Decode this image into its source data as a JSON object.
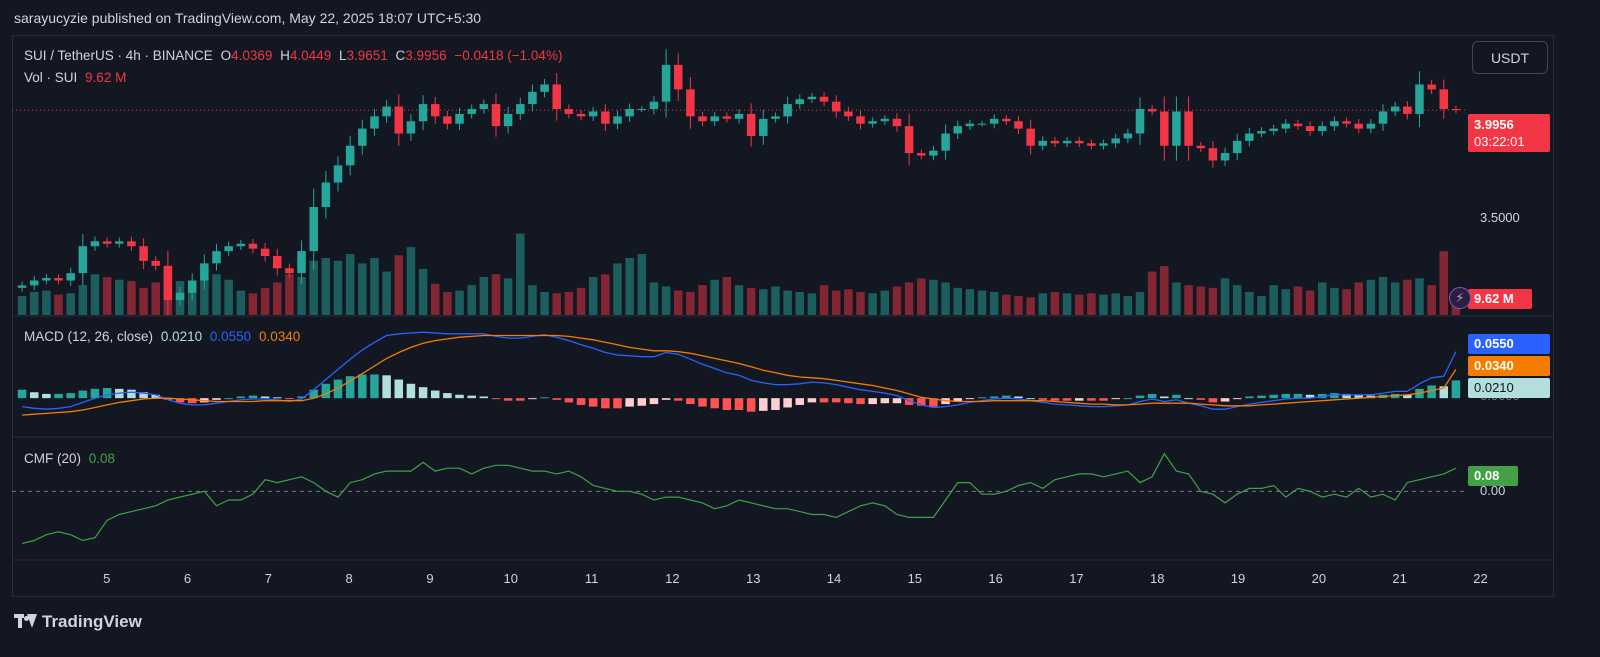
{
  "header": {
    "publisher": "sarayucyzie published on TradingView.com, May 22, 2025 18:07 UTC+5:30"
  },
  "symbol": {
    "name": "SUI / TetherUS · 4h · BINANCE",
    "o_label": "O",
    "o_value": "4.0369",
    "h_label": "H",
    "h_value": "4.0449",
    "l_label": "L",
    "l_value": "3.9651",
    "c_label": "C",
    "c_value": "3.9956",
    "change": "−0.0418 (−1.04%)"
  },
  "volume_legend": {
    "label": "Vol · SUI",
    "value": "9.62 M"
  },
  "currency_button": "USDT",
  "price_axis": {
    "last_price": "3.9956",
    "countdown": "03:22:01",
    "tick": "3.5000",
    "volume_tag": "9.62 M"
  },
  "macd": {
    "label": "MACD (12, 26, close)",
    "hist": "0.0210",
    "macd": "0.0550",
    "signal": "0.0340",
    "axis_hidden": "0.0000"
  },
  "cmf": {
    "label": "CMF (20)",
    "value": "0.08",
    "zero": "0.00"
  },
  "x_axis": [
    "5",
    "6",
    "7",
    "8",
    "9",
    "10",
    "11",
    "12",
    "13",
    "14",
    "15",
    "16",
    "17",
    "18",
    "19",
    "20",
    "21",
    "22"
  ],
  "brand": "TradingView",
  "colors": {
    "up": "#26a69a",
    "down": "#f23645",
    "macd": "#2962ff",
    "signal": "#f57c00",
    "cmf": "#43a047",
    "bg": "#131722"
  },
  "chart_data": {
    "type": "candlestick",
    "interval": "4h",
    "y_price_range": [
      3.2,
      4.2
    ],
    "closes": [
      3.28,
      3.3,
      3.31,
      3.3,
      3.33,
      3.44,
      3.46,
      3.45,
      3.46,
      3.44,
      3.38,
      3.36,
      3.22,
      3.25,
      3.3,
      3.37,
      3.42,
      3.44,
      3.45,
      3.43,
      3.4,
      3.35,
      3.33,
      3.42,
      3.6,
      3.7,
      3.77,
      3.85,
      3.92,
      3.97,
      4.01,
      3.9,
      3.95,
      4.02,
      3.97,
      3.94,
      3.98,
      4.0,
      4.02,
      3.93,
      3.98,
      4.02,
      4.07,
      4.1,
      4.0,
      3.98,
      3.97,
      3.99,
      3.94,
      3.97,
      4.0,
      4.0,
      4.03,
      4.18,
      4.08,
      3.97,
      3.95,
      3.97,
      3.96,
      3.98,
      3.89,
      3.96,
      3.97,
      4.02,
      4.04,
      4.05,
      4.03,
      3.99,
      3.97,
      3.94,
      3.95,
      3.96,
      3.93,
      3.82,
      3.81,
      3.83,
      3.9,
      3.93,
      3.94,
      3.94,
      3.96,
      3.95,
      3.92,
      3.85,
      3.87,
      3.86,
      3.87,
      3.86,
      3.85,
      3.86,
      3.88,
      3.9,
      4.0,
      3.99,
      3.85,
      3.99,
      3.85,
      3.84,
      3.79,
      3.82,
      3.87,
      3.9,
      3.91,
      3.92,
      3.94,
      3.93,
      3.91,
      3.93,
      3.95,
      3.94,
      3.92,
      3.94,
      3.99,
      4.01,
      3.98,
      4.1,
      4.08,
      4.0,
      3.9956
    ],
    "volume_range": [
      0,
      70
    ],
    "volumes": [
      14,
      17,
      18,
      15,
      16,
      22,
      30,
      28,
      26,
      25,
      20,
      24,
      35,
      25,
      22,
      28,
      30,
      26,
      18,
      16,
      20,
      24,
      30,
      28,
      40,
      42,
      40,
      45,
      38,
      42,
      32,
      44,
      50,
      34,
      23,
      17,
      18,
      22,
      28,
      30,
      27,
      60,
      22,
      17,
      16,
      17,
      20,
      28,
      30,
      38,
      42,
      45,
      24,
      21,
      18,
      17,
      22,
      26,
      28,
      22,
      20,
      19,
      21,
      18,
      17,
      16,
      22,
      18,
      19,
      17,
      16,
      18,
      21,
      24,
      27,
      26,
      24,
      20,
      19,
      18,
      17,
      15,
      14,
      13,
      16,
      17,
      16,
      15,
      16,
      15,
      16,
      14,
      17,
      32,
      36,
      24,
      22,
      21,
      20,
      27,
      22,
      17,
      14,
      22,
      19,
      21,
      18,
      24,
      20,
      19,
      24,
      26,
      28,
      24,
      26,
      27,
      22,
      47,
      9.62
    ],
    "macd_range": [
      -0.04,
      0.09
    ],
    "macd_line": [
      -0.01,
      -0.012,
      -0.013,
      -0.012,
      -0.01,
      -0.005,
      0.0,
      0.004,
      0.006,
      0.007,
      0.006,
      0.004,
      -0.002,
      -0.006,
      -0.008,
      -0.008,
      -0.006,
      -0.004,
      -0.002,
      -0.001,
      -0.001,
      -0.002,
      -0.004,
      -0.001,
      0.01,
      0.022,
      0.034,
      0.046,
      0.057,
      0.066,
      0.074,
      0.076,
      0.077,
      0.078,
      0.077,
      0.076,
      0.076,
      0.076,
      0.076,
      0.073,
      0.071,
      0.071,
      0.073,
      0.075,
      0.072,
      0.068,
      0.063,
      0.059,
      0.054,
      0.051,
      0.05,
      0.049,
      0.049,
      0.054,
      0.052,
      0.046,
      0.04,
      0.035,
      0.03,
      0.027,
      0.021,
      0.018,
      0.016,
      0.016,
      0.017,
      0.019,
      0.018,
      0.016,
      0.013,
      0.01,
      0.008,
      0.006,
      0.003,
      -0.003,
      -0.008,
      -0.011,
      -0.01,
      -0.008,
      -0.005,
      -0.003,
      -0.001,
      0.0,
      -0.001,
      -0.003,
      -0.005,
      -0.007,
      -0.008,
      -0.009,
      -0.01,
      -0.01,
      -0.009,
      -0.008,
      -0.004,
      -0.001,
      -0.004,
      -0.002,
      -0.006,
      -0.009,
      -0.013,
      -0.013,
      -0.01,
      -0.007,
      -0.005,
      -0.003,
      -0.001,
      0.0,
      0.0,
      0.002,
      0.004,
      0.004,
      0.004,
      0.004,
      0.006,
      0.008,
      0.008,
      0.017,
      0.024,
      0.026,
      0.055
    ],
    "signal_line": [
      -0.02,
      -0.019,
      -0.018,
      -0.017,
      -0.016,
      -0.014,
      -0.011,
      -0.008,
      -0.005,
      -0.003,
      -0.001,
      0.0,
      0.0,
      -0.001,
      -0.002,
      -0.003,
      -0.004,
      -0.004,
      -0.004,
      -0.004,
      -0.003,
      -0.003,
      -0.003,
      -0.003,
      0.0,
      0.005,
      0.012,
      0.02,
      0.029,
      0.038,
      0.047,
      0.054,
      0.06,
      0.065,
      0.068,
      0.07,
      0.072,
      0.073,
      0.074,
      0.074,
      0.074,
      0.074,
      0.074,
      0.074,
      0.074,
      0.073,
      0.071,
      0.069,
      0.066,
      0.063,
      0.06,
      0.058,
      0.056,
      0.056,
      0.055,
      0.053,
      0.05,
      0.047,
      0.044,
      0.041,
      0.037,
      0.033,
      0.03,
      0.027,
      0.025,
      0.024,
      0.023,
      0.021,
      0.019,
      0.017,
      0.015,
      0.012,
      0.009,
      0.005,
      0.001,
      -0.001,
      -0.003,
      -0.004,
      -0.004,
      -0.004,
      -0.003,
      -0.003,
      -0.003,
      -0.003,
      -0.003,
      -0.004,
      -0.005,
      -0.006,
      -0.007,
      -0.007,
      -0.008,
      -0.008,
      -0.007,
      -0.006,
      -0.006,
      -0.006,
      -0.006,
      -0.007,
      -0.008,
      -0.009,
      -0.009,
      -0.009,
      -0.008,
      -0.007,
      -0.006,
      -0.005,
      -0.004,
      -0.003,
      -0.002,
      -0.001,
      0.0,
      0.001,
      0.002,
      0.003,
      0.004,
      0.006,
      0.009,
      0.012,
      0.034
    ],
    "cmf_range": [
      -0.22,
      0.16
    ],
    "cmf": [
      -0.18,
      -0.17,
      -0.15,
      -0.14,
      -0.15,
      -0.17,
      -0.16,
      -0.1,
      -0.08,
      -0.07,
      -0.06,
      -0.05,
      -0.03,
      -0.02,
      -0.01,
      0.0,
      -0.05,
      -0.03,
      -0.03,
      -0.01,
      0.04,
      0.03,
      0.04,
      0.05,
      0.03,
      0.0,
      -0.02,
      0.03,
      0.04,
      0.06,
      0.07,
      0.07,
      0.07,
      0.1,
      0.07,
      0.08,
      0.08,
      0.06,
      0.08,
      0.09,
      0.09,
      0.08,
      0.07,
      0.07,
      0.06,
      0.07,
      0.05,
      0.02,
      0.01,
      0.0,
      0.0,
      -0.01,
      -0.03,
      -0.02,
      -0.02,
      -0.03,
      -0.04,
      -0.06,
      -0.05,
      -0.03,
      -0.04,
      -0.05,
      -0.06,
      -0.06,
      -0.07,
      -0.08,
      -0.08,
      -0.09,
      -0.07,
      -0.05,
      -0.04,
      -0.05,
      -0.08,
      -0.09,
      -0.09,
      -0.09,
      -0.03,
      0.03,
      0.03,
      -0.01,
      -0.01,
      0.0,
      0.02,
      0.03,
      0.01,
      0.04,
      0.05,
      0.06,
      0.06,
      0.05,
      0.06,
      0.07,
      0.03,
      0.05,
      0.13,
      0.07,
      0.06,
      0.0,
      -0.01,
      -0.04,
      -0.01,
      0.01,
      0.01,
      0.02,
      -0.02,
      0.01,
      0.0,
      -0.02,
      -0.01,
      -0.02,
      0.01,
      -0.02,
      -0.01,
      -0.03,
      0.03,
      0.04,
      0.05,
      0.06,
      0.08
    ]
  }
}
